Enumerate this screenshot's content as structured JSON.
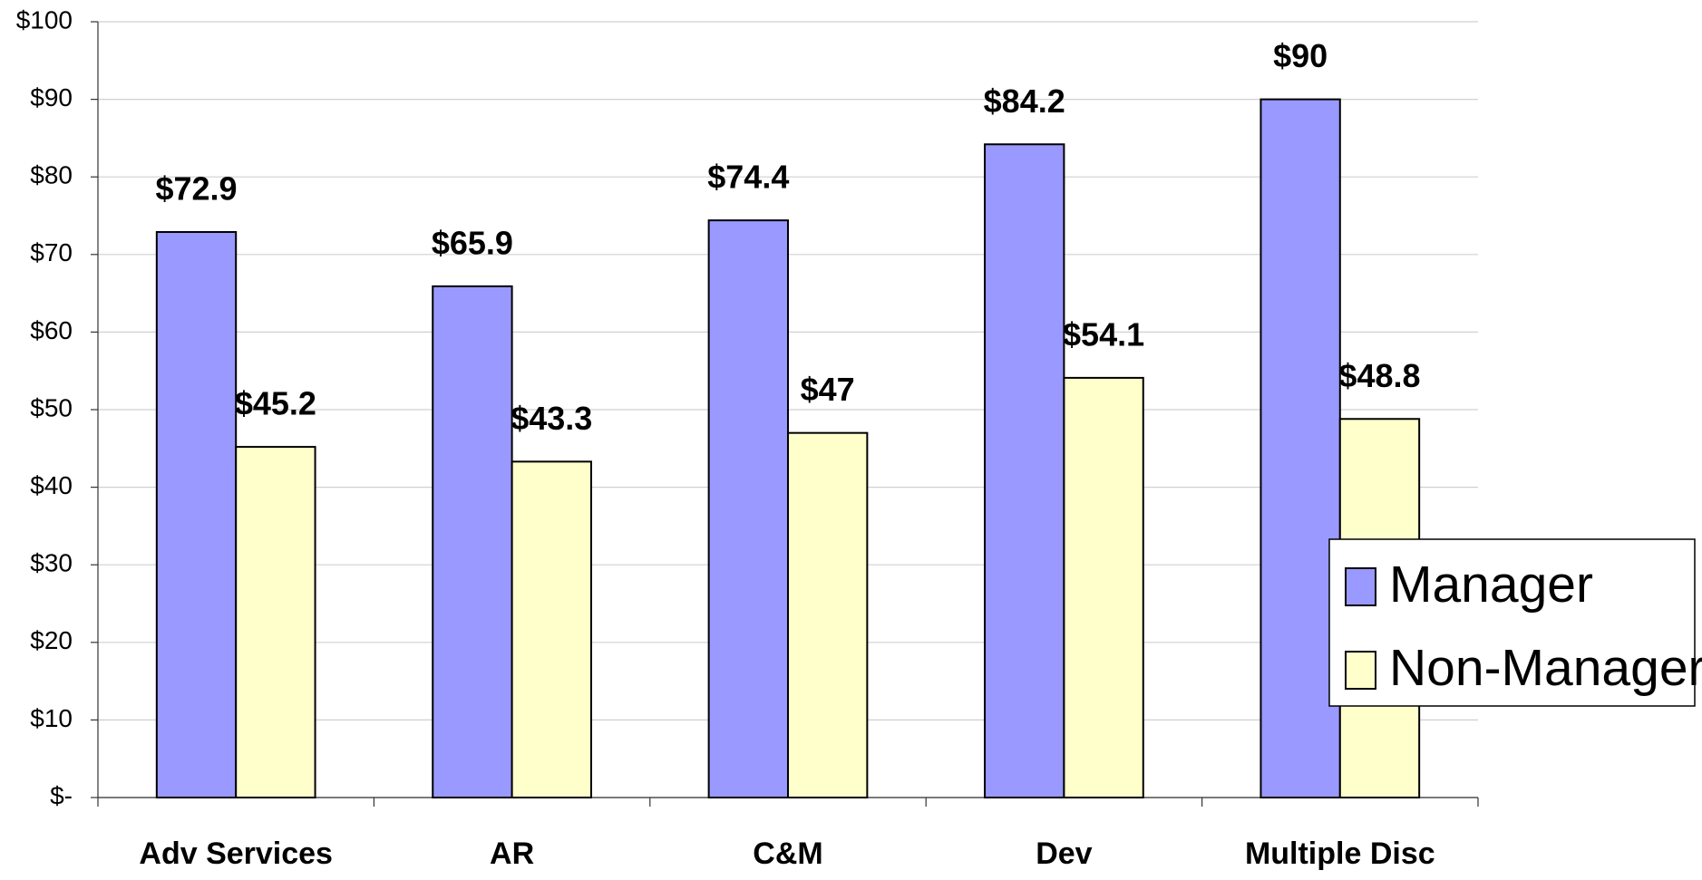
{
  "chart_data": {
    "type": "bar",
    "categories": [
      "Adv Services",
      "AR",
      "C&M",
      "Dev",
      "Multiple Disc"
    ],
    "series": [
      {
        "name": "Manager",
        "color": "#9999ff",
        "values": [
          72.9,
          65.9,
          74.4,
          84.2,
          90
        ],
        "value_labels": [
          "$72.9",
          "$65.9",
          "$74.4",
          "$84.2",
          "$90"
        ]
      },
      {
        "name": "Non-Manager",
        "color": "#ffffcc",
        "values": [
          45.2,
          43.3,
          47,
          54.1,
          48.8
        ],
        "value_labels": [
          "$45.2",
          "$43.3",
          "$47",
          "$54.1",
          "$48.8"
        ]
      }
    ],
    "ylim": [
      0,
      100
    ],
    "yticks": [
      {
        "value": 0,
        "label": "$-"
      },
      {
        "value": 10,
        "label": "$10"
      },
      {
        "value": 20,
        "label": "$20"
      },
      {
        "value": 30,
        "label": "$30"
      },
      {
        "value": 40,
        "label": "$40"
      },
      {
        "value": 50,
        "label": "$50"
      },
      {
        "value": 60,
        "label": "$60"
      },
      {
        "value": 70,
        "label": "$70"
      },
      {
        "value": 80,
        "label": "$80"
      },
      {
        "value": 90,
        "label": "$90"
      },
      {
        "value": 100,
        "label": "$100"
      }
    ],
    "grid": true,
    "legend": "right"
  }
}
